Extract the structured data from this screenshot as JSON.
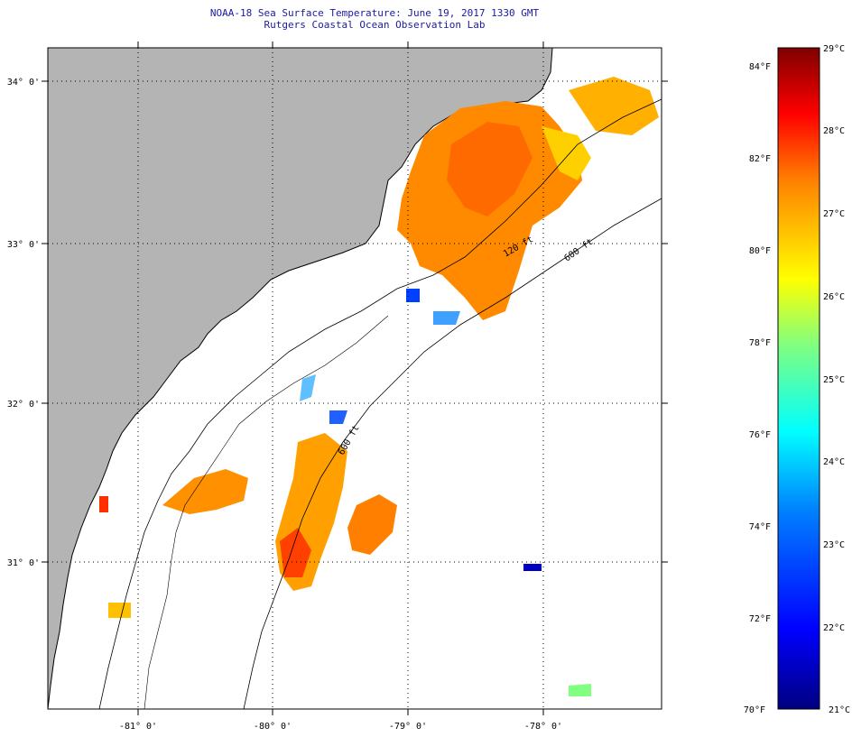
{
  "title": {
    "line1": "NOAA-18 Sea Surface Temperature:  June 19, 2017 1330 GMT",
    "line2": "Rutgers Coastal Ocean Observation Lab"
  },
  "map": {
    "lat_labels": [
      "34° 0'",
      "33° 0'",
      "32° 0'",
      "31° 0'"
    ],
    "lon_labels": [
      "-81° 0'",
      "-80° 0'",
      "-79° 0'",
      "-78° 0'"
    ],
    "isobath_labels": [
      "120 ft",
      "600 ft",
      "600 ft"
    ],
    "colors": {
      "land": "#b4b4b4",
      "ocean": "#ffffff"
    }
  },
  "colorbar": {
    "fahrenheit_labels": [
      "84°F",
      "82°F",
      "80°F",
      "78°F",
      "76°F",
      "74°F",
      "72°F",
      "70°F"
    ],
    "celsius_labels": [
      "29°C",
      "28°C",
      "27°C",
      "26°C",
      "25°C",
      "24°C",
      "23°C",
      "22°C",
      "21°C"
    ],
    "colors": [
      "#00007f",
      "#0000ff",
      "#0080ff",
      "#00ffff",
      "#80ff80",
      "#ffff00",
      "#ff8000",
      "#ff0000",
      "#7f0000"
    ]
  }
}
